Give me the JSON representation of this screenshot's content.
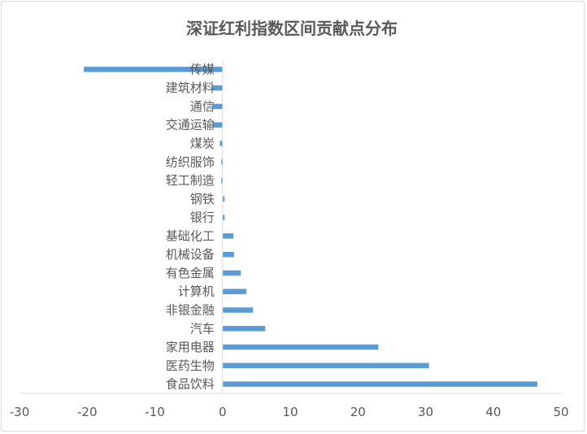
{
  "chart_data": {
    "type": "bar",
    "orientation": "horizontal",
    "title": "深证红利指数区间贡献点分布",
    "xlabel": "",
    "ylabel": "",
    "xlim": [
      -30,
      50
    ],
    "xticks": [
      -30,
      -20,
      -10,
      0,
      10,
      20,
      30,
      40,
      50
    ],
    "grid": false,
    "legend": "none",
    "bar_color": "#5b9bd5",
    "categories": [
      "传媒",
      "建筑材料",
      "通信",
      "交通运输",
      "煤炭",
      "纺织服饰",
      "轻工制造",
      "钢铁",
      "银行",
      "基础化工",
      "机械设备",
      "有色金属",
      "计算机",
      "非银金融",
      "汽车",
      "家用电器",
      "医药生物",
      "食品饮料"
    ],
    "values": [
      -20.5,
      -1.5,
      -1.5,
      -1.5,
      -0.4,
      -0.2,
      -0.2,
      0.3,
      0.3,
      1.6,
      1.7,
      2.7,
      3.5,
      4.5,
      6.3,
      23.0,
      30.5,
      46.5
    ]
  }
}
